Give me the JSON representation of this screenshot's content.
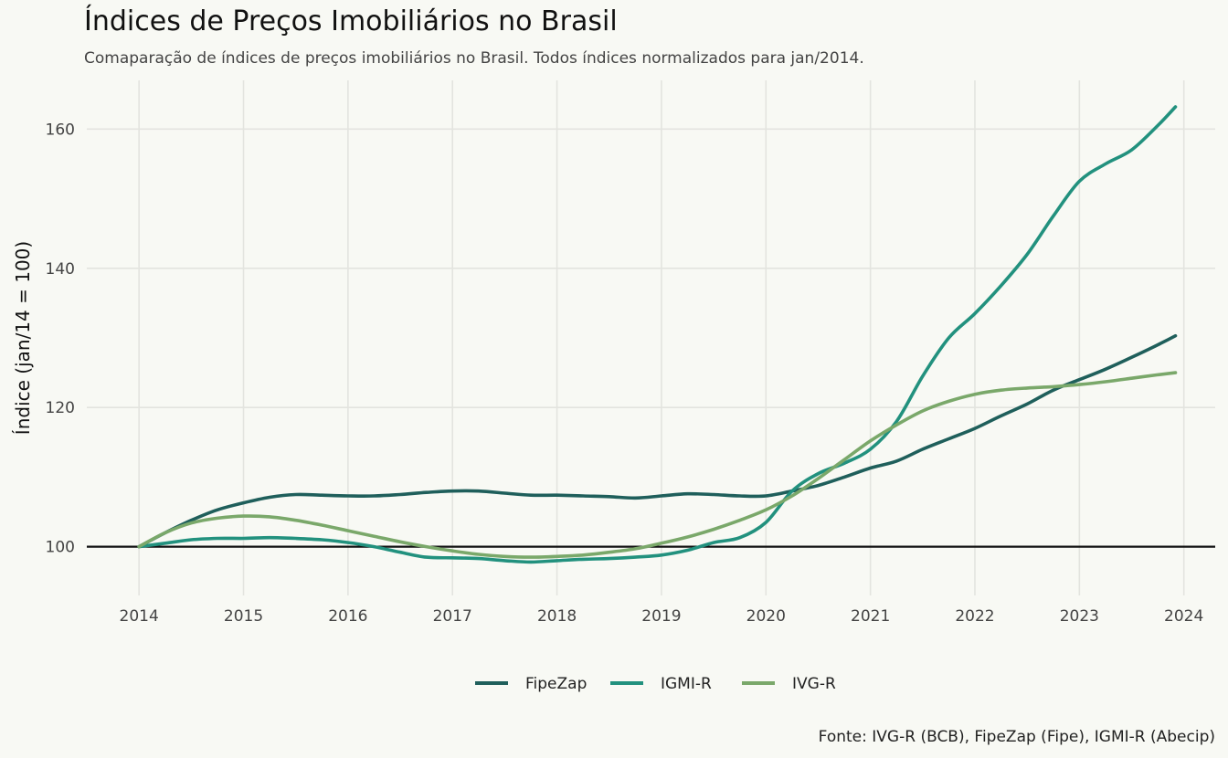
{
  "chart_data": {
    "type": "line",
    "title": "Índices de Preços Imobiliários no Brasil",
    "subtitle": "Comaparação de índices de preços imobiliários no Brasil. Todos índices normalizados para jan/2014.",
    "xlabel": "",
    "ylabel": "Índice (jan/14 = 100)",
    "caption": "Fonte: IVG-R (BCB), FipeZap (Fipe), IGMI-R (Abecip)",
    "xlim": [
      2013.5,
      2024.3
    ],
    "ylim": [
      93,
      167
    ],
    "x_ticks": [
      2014,
      2015,
      2016,
      2017,
      2018,
      2019,
      2020,
      2021,
      2022,
      2023,
      2024
    ],
    "y_ticks": [
      100,
      120,
      140,
      160
    ],
    "reference_line": 100,
    "grid": true,
    "legend_position": "bottom",
    "series": [
      {
        "name": "FipeZap",
        "color": "#1f5f5b",
        "x": [
          2014.0,
          2014.25,
          2014.5,
          2014.75,
          2015.0,
          2015.25,
          2015.5,
          2015.75,
          2016.0,
          2016.25,
          2016.5,
          2016.75,
          2017.0,
          2017.25,
          2017.5,
          2017.75,
          2018.0,
          2018.25,
          2018.5,
          2018.75,
          2019.0,
          2019.25,
          2019.5,
          2019.75,
          2020.0,
          2020.25,
          2020.5,
          2020.75,
          2021.0,
          2021.25,
          2021.5,
          2021.75,
          2022.0,
          2022.25,
          2022.5,
          2022.75,
          2023.0,
          2023.25,
          2023.5,
          2023.75,
          2023.92
        ],
        "values": [
          100.0,
          102.0,
          103.8,
          105.3,
          106.3,
          107.1,
          107.5,
          107.4,
          107.3,
          107.3,
          107.5,
          107.8,
          108.0,
          108.0,
          107.7,
          107.4,
          107.4,
          107.3,
          107.2,
          107.0,
          107.3,
          107.6,
          107.5,
          107.3,
          107.3,
          108.0,
          108.8,
          110.0,
          111.3,
          112.3,
          114.0,
          115.5,
          117.0,
          118.8,
          120.5,
          122.5,
          124.0,
          125.5,
          127.2,
          129.0,
          130.3
        ]
      },
      {
        "name": "IGMI-R",
        "color": "#22917e",
        "x": [
          2014.0,
          2014.25,
          2014.5,
          2014.75,
          2015.0,
          2015.25,
          2015.5,
          2015.75,
          2016.0,
          2016.25,
          2016.5,
          2016.75,
          2017.0,
          2017.25,
          2017.5,
          2017.75,
          2018.0,
          2018.25,
          2018.5,
          2018.75,
          2019.0,
          2019.25,
          2019.5,
          2019.75,
          2020.0,
          2020.25,
          2020.5,
          2020.75,
          2021.0,
          2021.25,
          2021.5,
          2021.75,
          2022.0,
          2022.25,
          2022.5,
          2022.75,
          2023.0,
          2023.25,
          2023.5,
          2023.75,
          2023.92
        ],
        "values": [
          100.0,
          100.5,
          101.0,
          101.2,
          101.2,
          101.3,
          101.2,
          101.0,
          100.6,
          100.0,
          99.2,
          98.5,
          98.4,
          98.3,
          98.0,
          97.8,
          98.0,
          98.2,
          98.3,
          98.5,
          98.8,
          99.5,
          100.6,
          101.3,
          103.5,
          108.0,
          110.5,
          112.0,
          114.0,
          118.0,
          124.5,
          130.0,
          133.5,
          137.5,
          142.0,
          147.5,
          152.5,
          155.0,
          157.0,
          160.5,
          163.2
        ]
      },
      {
        "name": "IVG-R",
        "color": "#7aa86a",
        "x": [
          2014.0,
          2014.25,
          2014.5,
          2014.75,
          2015.0,
          2015.25,
          2015.5,
          2015.75,
          2016.0,
          2016.25,
          2016.5,
          2016.75,
          2017.0,
          2017.25,
          2017.5,
          2017.75,
          2018.0,
          2018.25,
          2018.5,
          2018.75,
          2019.0,
          2019.25,
          2019.5,
          2019.75,
          2020.0,
          2020.25,
          2020.5,
          2020.75,
          2021.0,
          2021.25,
          2021.5,
          2021.75,
          2022.0,
          2022.25,
          2022.5,
          2022.75,
          2023.0,
          2023.25,
          2023.5,
          2023.75,
          2023.92
        ],
        "values": [
          100.0,
          102.0,
          103.4,
          104.1,
          104.4,
          104.3,
          103.8,
          103.1,
          102.3,
          101.5,
          100.7,
          100.0,
          99.4,
          98.9,
          98.6,
          98.5,
          98.6,
          98.8,
          99.2,
          99.7,
          100.5,
          101.4,
          102.5,
          103.8,
          105.3,
          107.3,
          109.8,
          112.5,
          115.2,
          117.5,
          119.5,
          120.9,
          121.9,
          122.5,
          122.8,
          123.0,
          123.3,
          123.7,
          124.2,
          124.7,
          125.0
        ]
      }
    ]
  }
}
